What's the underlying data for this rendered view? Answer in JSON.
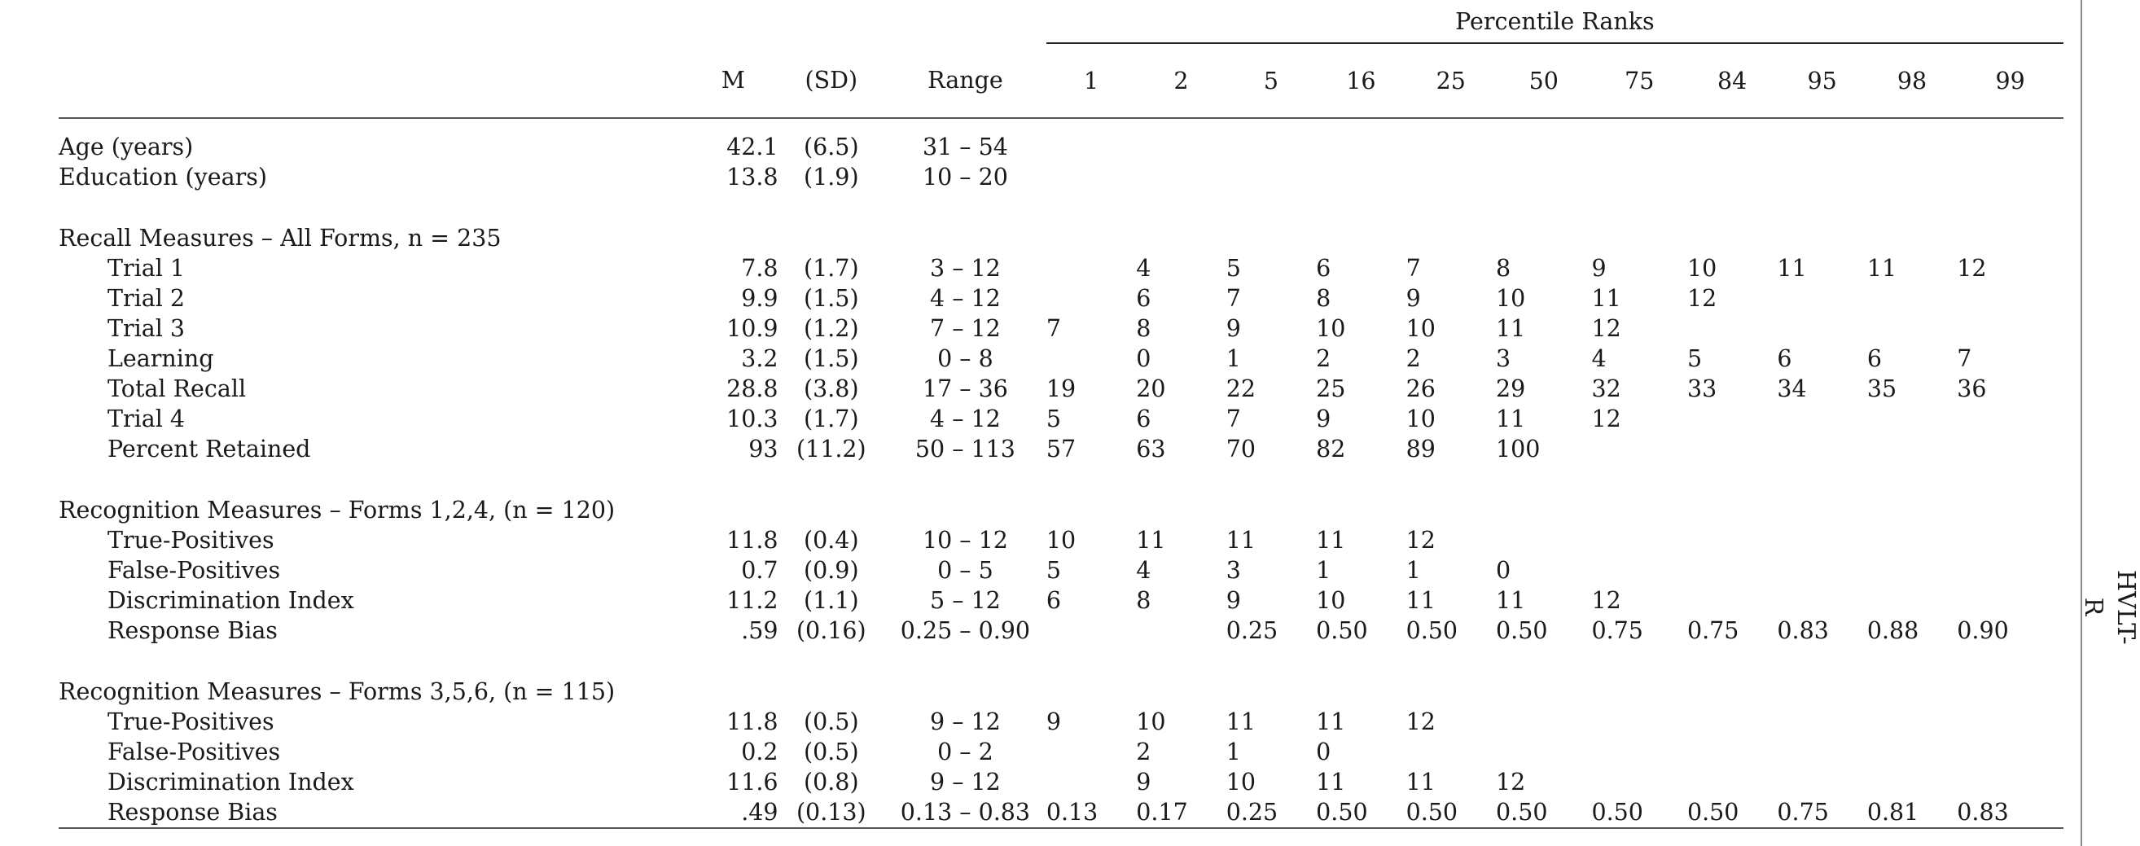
{
  "side_label": "HVLT-R",
  "header": {
    "percentile_caption": "Percentile Ranks",
    "columns": {
      "m": "M",
      "sd": "(SD)",
      "range": "Range"
    },
    "percentiles": [
      "1",
      "2",
      "5",
      "16",
      "25",
      "50",
      "75",
      "84",
      "95",
      "98",
      "99"
    ]
  },
  "demographics": [
    {
      "label": "Age (years)",
      "m": "42.1",
      "sd": "(6.5)",
      "range": "31 – 54"
    },
    {
      "label": "Education (years)",
      "m": "13.8",
      "sd": "(1.9)",
      "range": "10 – 20"
    }
  ],
  "sections": [
    {
      "title": "Recall Measures – All Forms, n = 235",
      "rows": [
        {
          "label": "Trial 1",
          "m": "7.8",
          "sd": "(1.7)",
          "range": "3 – 12",
          "p": [
            "",
            "4",
            "5",
            "6",
            "7",
            "8",
            "9",
            "10",
            "11",
            "11",
            "12"
          ]
        },
        {
          "label": "Trial 2",
          "m": "9.9",
          "sd": "(1.5)",
          "range": "4 – 12",
          "p": [
            "",
            "6",
            "7",
            "8",
            "9",
            "10",
            "11",
            "12",
            "",
            "",
            ""
          ]
        },
        {
          "label": "Trial 3",
          "m": "10.9",
          "sd": "(1.2)",
          "range": "7 – 12",
          "p": [
            "7",
            "8",
            "9",
            "10",
            "10",
            "11",
            "12",
            "",
            "",
            "",
            ""
          ]
        },
        {
          "label": "Learning",
          "m": "3.2",
          "sd": "(1.5)",
          "range": "0 – 8",
          "p": [
            "",
            "0",
            "1",
            "2",
            "2",
            "3",
            "4",
            "5",
            "6",
            "6",
            "7"
          ]
        },
        {
          "label": "Total Recall",
          "m": "28.8",
          "sd": "(3.8)",
          "range": "17 – 36",
          "p": [
            "19",
            "20",
            "22",
            "25",
            "26",
            "29",
            "32",
            "33",
            "34",
            "35",
            "36"
          ]
        },
        {
          "label": "Trial 4",
          "m": "10.3",
          "sd": "(1.7)",
          "range": "4 – 12",
          "p": [
            "5",
            "6",
            "7",
            "9",
            "10",
            "11",
            "12",
            "",
            "",
            "",
            ""
          ]
        },
        {
          "label": "Percent Retained",
          "m": "93",
          "sd": "(11.2)",
          "range": "50 – 113",
          "p": [
            "57",
            "63",
            "70",
            "82",
            "89",
            "100",
            "",
            "",
            "",
            "",
            ""
          ]
        }
      ]
    },
    {
      "title": "Recognition Measures – Forms 1,2,4, (n = 120)",
      "rows": [
        {
          "label": "True-Positives",
          "m": "11.8",
          "sd": "(0.4)",
          "range": "10 – 12",
          "p": [
            "10",
            "11",
            "11",
            "11",
            "12",
            "",
            "",
            "",
            "",
            "",
            ""
          ]
        },
        {
          "label": "False-Positives",
          "m": "0.7",
          "sd": "(0.9)",
          "range": "0 – 5",
          "p": [
            "5",
            "4",
            "3",
            "1",
            "1",
            "0",
            "",
            "",
            "",
            "",
            ""
          ]
        },
        {
          "label": "Discrimination Index",
          "m": "11.2",
          "sd": "(1.1)",
          "range": "5 – 12",
          "p": [
            "6",
            "8",
            "9",
            "10",
            "11",
            "11",
            "12",
            "",
            "",
            "",
            ""
          ]
        },
        {
          "label": "Response Bias",
          "m": ".59",
          "sd": "(0.16)",
          "range": "0.25 – 0.90",
          "p": [
            "",
            "",
            "0.25",
            "0.50",
            "0.50",
            "0.50",
            "0.75",
            "0.75",
            "0.83",
            "0.88",
            "0.90"
          ]
        }
      ]
    },
    {
      "title": "Recognition Measures – Forms 3,5,6, (n = 115)",
      "rows": [
        {
          "label": "True-Positives",
          "m": "11.8",
          "sd": "(0.5)",
          "range": "9 – 12",
          "p": [
            "9",
            "10",
            "11",
            "11",
            "12",
            "",
            "",
            "",
            "",
            "",
            ""
          ]
        },
        {
          "label": "False-Positives",
          "m": "0.2",
          "sd": "(0.5)",
          "range": "0 – 2",
          "p": [
            "",
            "2",
            "1",
            "0",
            "",
            "",
            "",
            "",
            "",
            "",
            ""
          ]
        },
        {
          "label": "Discrimination Index",
          "m": "11.6",
          "sd": "(0.8)",
          "range": "9 – 12",
          "p": [
            "",
            "9",
            "10",
            "11",
            "11",
            "12",
            "",
            "",
            "",
            "",
            ""
          ]
        },
        {
          "label": "Response Bias",
          "m": ".49",
          "sd": "(0.13)",
          "range": "0.13 – 0.83",
          "p": [
            "0.13",
            "0.17",
            "0.25",
            "0.50",
            "0.50",
            "0.50",
            "0.50",
            "0.50",
            "0.75",
            "0.81",
            "0.83"
          ]
        }
      ]
    }
  ]
}
